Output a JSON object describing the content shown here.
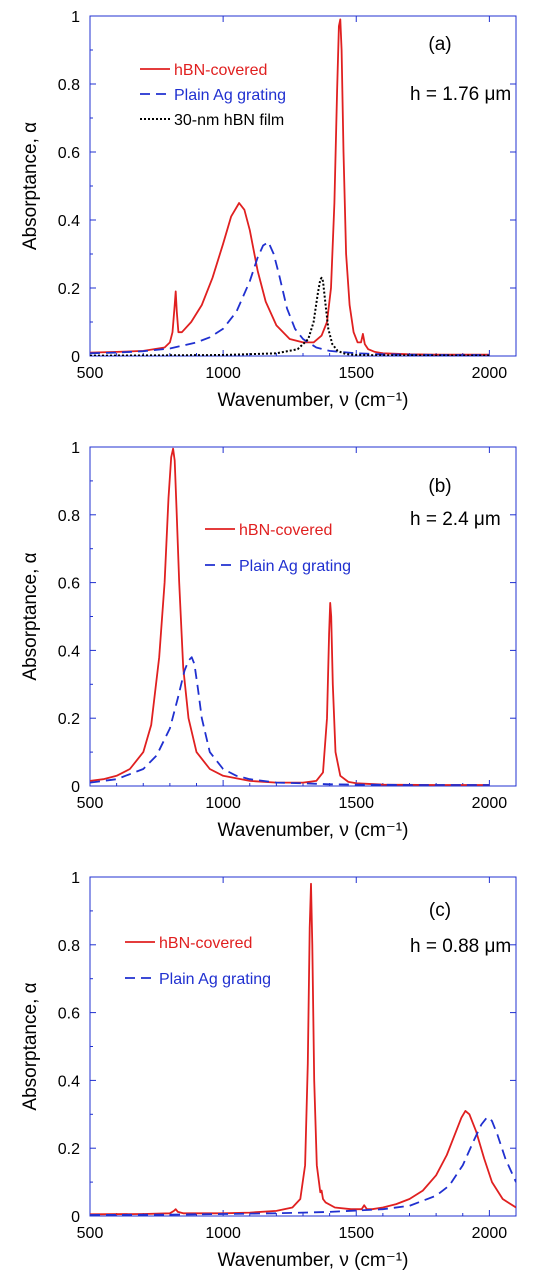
{
  "chart_data": [
    {
      "type": "line",
      "panel_label": "(a)",
      "annotation": "h = 1.76 μm",
      "xlabel": "Wavenumber, ν (cm⁻¹)",
      "ylabel": "Absorptance, α",
      "xlim": [
        500,
        2100
      ],
      "ylim": [
        0,
        1
      ],
      "xticks": [
        500,
        1000,
        1500,
        2000
      ],
      "yticks": [
        0,
        0.2,
        0.4,
        0.6,
        0.8,
        1
      ],
      "ytick_labels": [
        "0",
        "0.2",
        "0.4",
        "0.6",
        "0.8",
        "1"
      ],
      "grid": false,
      "legend_position": "top-left",
      "series": [
        {
          "name": "hBN-covered",
          "color": "#e02020",
          "style": "solid",
          "x": [
            500,
            600,
            700,
            780,
            800,
            810,
            818,
            822,
            826,
            832,
            845,
            880,
            920,
            960,
            1000,
            1030,
            1060,
            1080,
            1100,
            1130,
            1160,
            1200,
            1250,
            1300,
            1340,
            1370,
            1390,
            1405,
            1418,
            1428,
            1435,
            1440,
            1445,
            1452,
            1462,
            1475,
            1490,
            1505,
            1518,
            1525,
            1532,
            1545,
            1570,
            1600,
            1700,
            1800,
            1900,
            2000
          ],
          "y": [
            0.01,
            0.012,
            0.015,
            0.025,
            0.04,
            0.07,
            0.15,
            0.19,
            0.13,
            0.07,
            0.07,
            0.1,
            0.15,
            0.23,
            0.33,
            0.41,
            0.45,
            0.43,
            0.37,
            0.25,
            0.16,
            0.09,
            0.05,
            0.04,
            0.04,
            0.06,
            0.1,
            0.2,
            0.45,
            0.78,
            0.97,
            0.99,
            0.9,
            0.6,
            0.3,
            0.15,
            0.07,
            0.04,
            0.04,
            0.065,
            0.035,
            0.02,
            0.012,
            0.008,
            0.005,
            0.004,
            0.004,
            0.004
          ]
        },
        {
          "name": "Plain Ag grating",
          "color": "#2030d0",
          "style": "dashed",
          "x": [
            500,
            600,
            700,
            800,
            900,
            950,
            1000,
            1050,
            1100,
            1130,
            1150,
            1170,
            1190,
            1210,
            1240,
            1270,
            1300,
            1350,
            1400,
            1500,
            1600,
            1700,
            1800,
            1900,
            2000
          ],
          "y": [
            0.008,
            0.01,
            0.014,
            0.022,
            0.04,
            0.055,
            0.08,
            0.13,
            0.22,
            0.29,
            0.325,
            0.335,
            0.3,
            0.24,
            0.14,
            0.08,
            0.05,
            0.025,
            0.015,
            0.008,
            0.005,
            0.004,
            0.003,
            0.003,
            0.003
          ]
        },
        {
          "name": "30-nm hBN film",
          "color": "#000000",
          "style": "dotted",
          "x": [
            500,
            800,
            1000,
            1200,
            1280,
            1320,
            1340,
            1355,
            1365,
            1370,
            1375,
            1385,
            1395,
            1410,
            1430,
            1460,
            1500,
            1600,
            2000
          ],
          "y": [
            0.001,
            0.002,
            0.003,
            0.008,
            0.02,
            0.05,
            0.1,
            0.18,
            0.225,
            0.23,
            0.22,
            0.15,
            0.08,
            0.035,
            0.015,
            0.006,
            0.003,
            0.002,
            0.001
          ]
        }
      ]
    },
    {
      "type": "line",
      "panel_label": "(b)",
      "annotation": "h = 2.4 μm",
      "xlabel": "Wavenumber, ν (cm⁻¹)",
      "ylabel": "Absorptance, α",
      "xlim": [
        500,
        2100
      ],
      "ylim": [
        0,
        1
      ],
      "xticks": [
        500,
        1000,
        1500,
        2000
      ],
      "yticks": [
        0,
        0.2,
        0.4,
        0.6,
        0.8,
        1
      ],
      "ytick_labels": [
        "0",
        "0.2",
        "0.4",
        "0.6",
        "0.8",
        "1"
      ],
      "grid": false,
      "legend_position": "center",
      "series": [
        {
          "name": "hBN-covered",
          "color": "#e02020",
          "style": "solid",
          "x": [
            500,
            550,
            600,
            650,
            700,
            730,
            760,
            780,
            795,
            805,
            812,
            818,
            825,
            835,
            850,
            870,
            900,
            950,
            1000,
            1100,
            1200,
            1300,
            1350,
            1375,
            1390,
            1398,
            1402,
            1406,
            1412,
            1422,
            1440,
            1470,
            1500,
            1600,
            1800,
            2000
          ],
          "y": [
            0.015,
            0.02,
            0.03,
            0.05,
            0.1,
            0.18,
            0.38,
            0.6,
            0.85,
            0.97,
            0.995,
            0.96,
            0.82,
            0.6,
            0.35,
            0.2,
            0.1,
            0.05,
            0.03,
            0.015,
            0.01,
            0.01,
            0.015,
            0.04,
            0.2,
            0.45,
            0.54,
            0.5,
            0.3,
            0.1,
            0.03,
            0.012,
            0.008,
            0.004,
            0.003,
            0.003
          ]
        },
        {
          "name": "Plain Ag grating",
          "color": "#2030d0",
          "style": "dashed",
          "x": [
            500,
            600,
            700,
            750,
            800,
            830,
            855,
            870,
            882,
            892,
            905,
            920,
            950,
            1000,
            1050,
            1100,
            1200,
            1300,
            1400,
            1500,
            1700,
            2000
          ],
          "y": [
            0.01,
            0.02,
            0.05,
            0.09,
            0.17,
            0.26,
            0.34,
            0.37,
            0.38,
            0.36,
            0.29,
            0.2,
            0.1,
            0.05,
            0.03,
            0.02,
            0.01,
            0.008,
            0.005,
            0.004,
            0.003,
            0.003
          ]
        }
      ]
    },
    {
      "type": "line",
      "panel_label": "(c)",
      "annotation": "h = 0.88 μm",
      "xlabel": "Wavenumber, ν (cm⁻¹)",
      "ylabel": "Absorptance, α",
      "xlim": [
        500,
        2100
      ],
      "ylim": [
        0,
        1
      ],
      "xticks": [
        500,
        1000,
        1500,
        2000
      ],
      "yticks": [
        0,
        0.2,
        0.4,
        0.6,
        0.8,
        1
      ],
      "ytick_labels": [
        "0",
        "0.2",
        "0.4",
        "0.6",
        "0.8",
        "1"
      ],
      "grid": false,
      "legend_position": "top-left",
      "series": [
        {
          "name": "hBN-covered",
          "color": "#e02020",
          "style": "solid",
          "x": [
            500,
            700,
            800,
            815,
            822,
            830,
            850,
            1000,
            1100,
            1200,
            1260,
            1290,
            1308,
            1318,
            1325,
            1330,
            1335,
            1342,
            1352,
            1365,
            1370,
            1375,
            1385,
            1420,
            1480,
            1520,
            1530,
            1540,
            1560,
            1600,
            1650,
            1700,
            1750,
            1800,
            1840,
            1870,
            1895,
            1910,
            1925,
            1950,
            1980,
            2010,
            2050,
            2100
          ],
          "y": [
            0.005,
            0.006,
            0.008,
            0.015,
            0.02,
            0.012,
            0.008,
            0.008,
            0.01,
            0.015,
            0.025,
            0.05,
            0.15,
            0.45,
            0.85,
            0.98,
            0.8,
            0.4,
            0.15,
            0.07,
            0.075,
            0.05,
            0.04,
            0.025,
            0.02,
            0.02,
            0.032,
            0.02,
            0.02,
            0.025,
            0.035,
            0.05,
            0.075,
            0.12,
            0.18,
            0.24,
            0.29,
            0.31,
            0.3,
            0.25,
            0.17,
            0.1,
            0.05,
            0.025
          ]
        },
        {
          "name": "Plain Ag grating",
          "color": "#2030d0",
          "style": "dashed",
          "x": [
            500,
            800,
            1000,
            1200,
            1400,
            1600,
            1700,
            1800,
            1850,
            1900,
            1940,
            1970,
            1990,
            2000,
            2010,
            2030,
            2060,
            2100
          ],
          "y": [
            0.003,
            0.004,
            0.006,
            0.008,
            0.012,
            0.02,
            0.03,
            0.06,
            0.09,
            0.15,
            0.22,
            0.27,
            0.29,
            0.29,
            0.28,
            0.24,
            0.17,
            0.1
          ]
        }
      ]
    }
  ]
}
